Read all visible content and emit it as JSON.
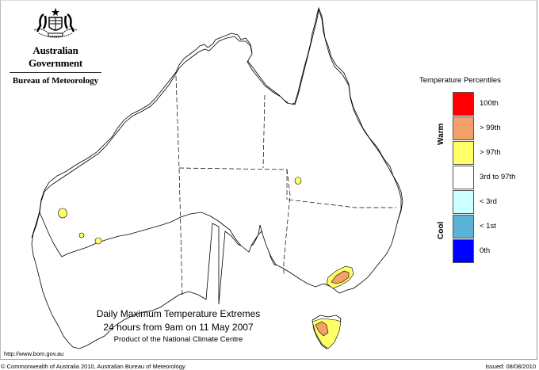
{
  "header": {
    "org_line1": "Australian Government",
    "org_line2": "Bureau of Meteorology",
    "crest_icon": "commonwealth-coat-of-arms"
  },
  "map": {
    "region": "Australia",
    "hotspots": [
      {
        "name": "WA west coast",
        "level": "> 97th"
      },
      {
        "name": "WA southwest 1",
        "level": "> 97th"
      },
      {
        "name": "WA southwest 2",
        "level": "> 97th"
      },
      {
        "name": "Queensland southwest",
        "level": "> 97th"
      },
      {
        "name": "Victoria/NSW alpine",
        "level": "> 99th"
      },
      {
        "name": "Tasmania west",
        "level": "> 99th"
      }
    ]
  },
  "legend": {
    "title": "Temperature Percentiles",
    "warm_label": "Warm",
    "cool_label": "Cool",
    "items": [
      {
        "label": "100th",
        "color": "#ff0000"
      },
      {
        "label": "> 99th",
        "color": "#f4a06a"
      },
      {
        "label": "> 97th",
        "color": "#ffff66"
      },
      {
        "label": "3rd to 97th",
        "color": "#ffffff"
      },
      {
        "label": "< 3rd",
        "color": "#ccffff"
      },
      {
        "label": "< 1st",
        "color": "#5ab4da"
      },
      {
        "label": "0th",
        "color": "#0000ff"
      }
    ]
  },
  "caption": {
    "title": "Daily Maximum Temperature Extremes",
    "period": "24 hours from 9am on 11 May 2007",
    "product": "Product of the National Climate Centre"
  },
  "footer": {
    "url": "http://www.bom.gov.au",
    "copyright": "© Commonwealth of Australia 2010, Australian Bureau of Meteorology",
    "issued": "Issued: 08/08/2010"
  }
}
